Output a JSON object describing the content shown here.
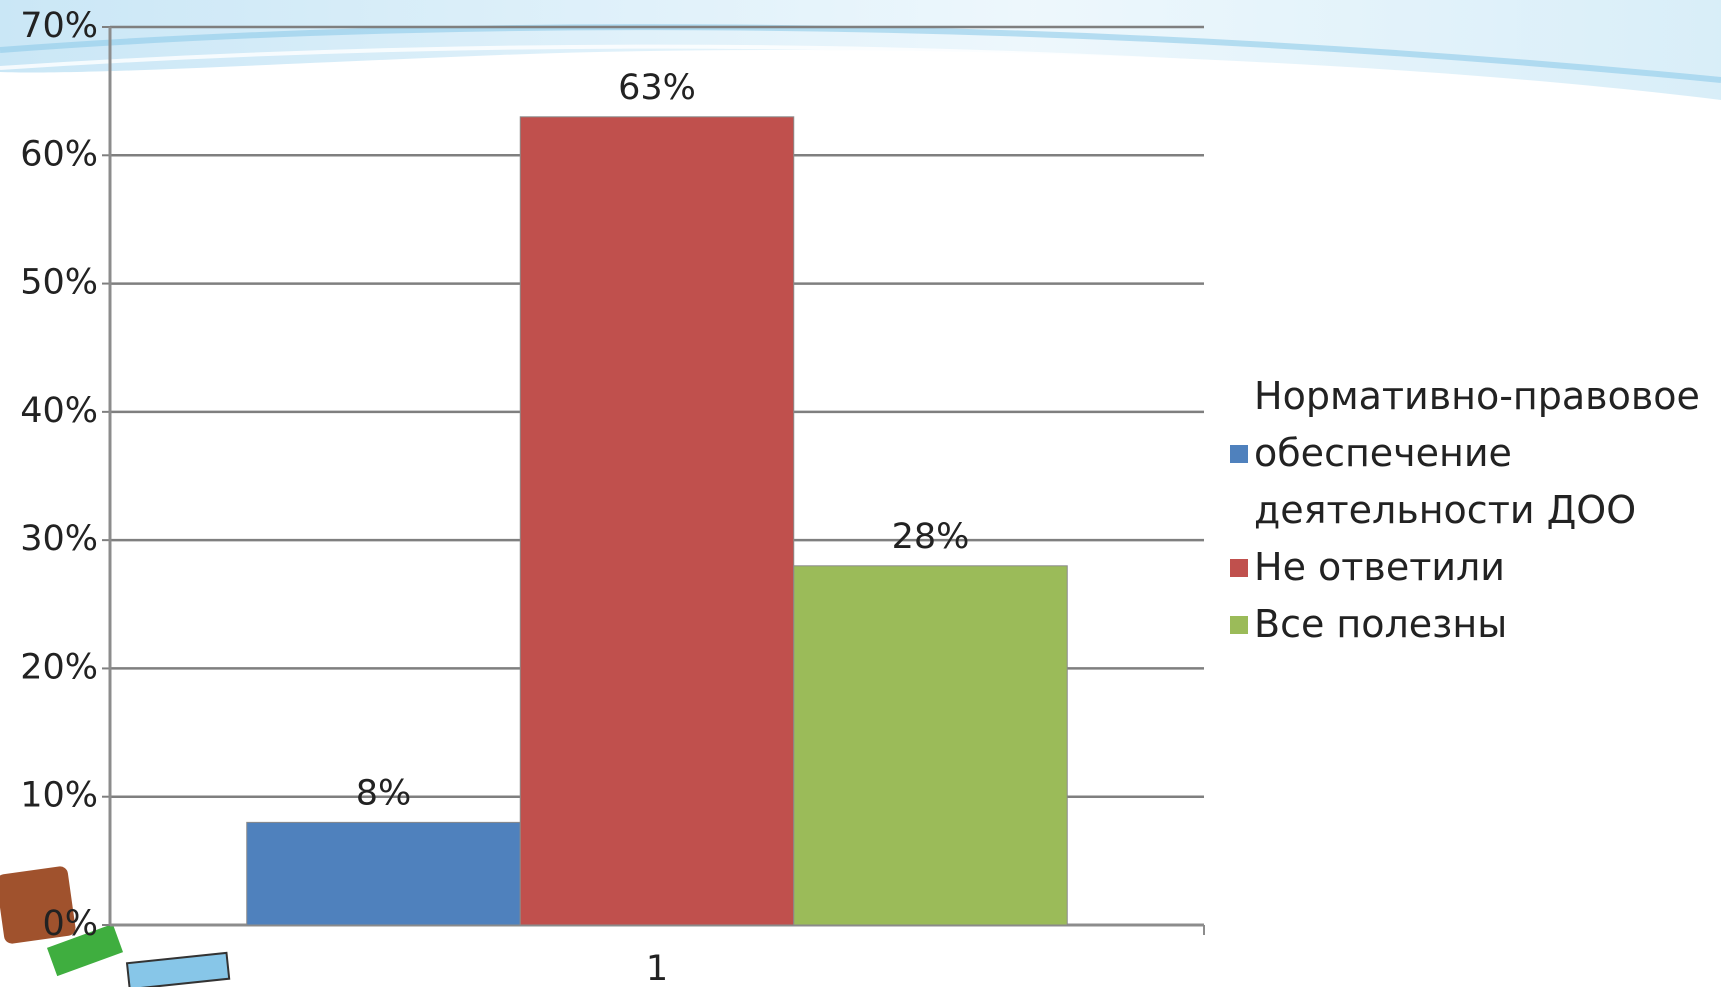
{
  "chart_data": {
    "type": "bar",
    "categories": [
      "1"
    ],
    "series": [
      {
        "name": "Нормативно-правовое обеспечение деятельности ДОО",
        "color": "#4f81bd",
        "values": [
          8
        ],
        "value_labels": [
          "8%"
        ]
      },
      {
        "name": "Не ответили",
        "color": "#c0504d",
        "values": [
          63
        ],
        "value_labels": [
          "63%"
        ]
      },
      {
        "name": "Все полезны",
        "color": "#9bbb59",
        "values": [
          28
        ],
        "value_labels": [
          "28%"
        ]
      }
    ],
    "ylim": [
      0,
      70
    ],
    "yticks": [
      {
        "value": 0,
        "label": "0%"
      },
      {
        "value": 10,
        "label": "10%"
      },
      {
        "value": 20,
        "label": "20%"
      },
      {
        "value": 30,
        "label": "30%"
      },
      {
        "value": 40,
        "label": "40%"
      },
      {
        "value": 50,
        "label": "50%"
      },
      {
        "value": 60,
        "label": "60%"
      },
      {
        "value": 70,
        "label": "70%"
      }
    ],
    "grid": true,
    "legend": "right"
  }
}
